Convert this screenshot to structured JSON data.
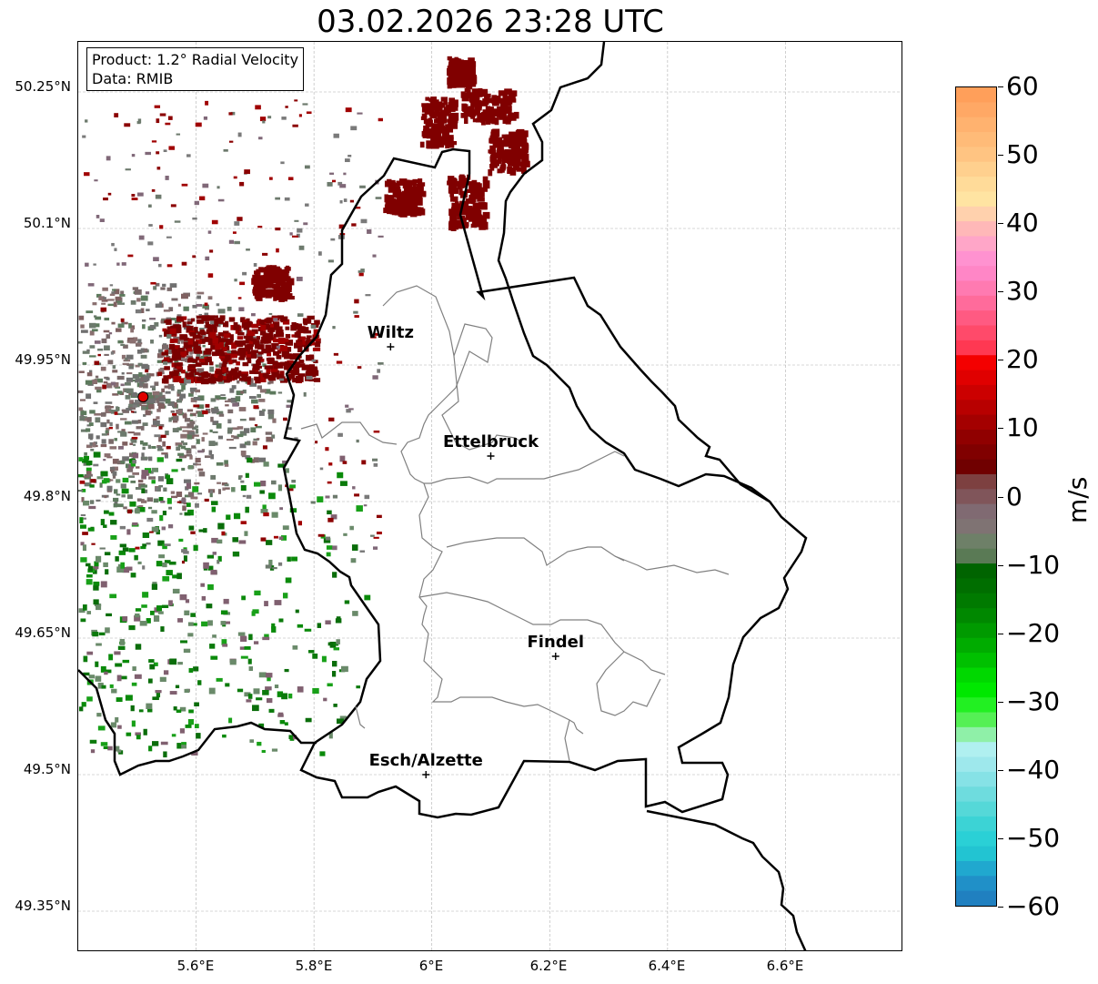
{
  "title": "03.02.2026 23:28 UTC",
  "info": {
    "product": "Product: 1.2° Radial Velocity",
    "data": "Data: RMIB"
  },
  "axes": {
    "lat_ticks": [
      "50.25°N",
      "50.1°N",
      "49.95°N",
      "49.8°N",
      "49.65°N",
      "49.5°N",
      "49.35°N"
    ],
    "lon_ticks": [
      "5.6°E",
      "5.8°E",
      "6°E",
      "6.2°E",
      "6.4°E",
      "6.6°E"
    ]
  },
  "cities": [
    {
      "name": "Wiltz",
      "lon": 5.93,
      "lat": 49.97
    },
    {
      "name": "Ettelbruck",
      "lon": 6.1,
      "lat": 49.85
    },
    {
      "name": "Findel",
      "lon": 6.21,
      "lat": 49.63
    },
    {
      "name": "Esch/Alzette",
      "lon": 5.99,
      "lat": 49.5
    }
  ],
  "radar_site": {
    "lon": 5.51,
    "lat": 49.915,
    "color": "#e00000"
  },
  "colorbar": {
    "unit": "m/s",
    "ticks": [
      "60",
      "50",
      "40",
      "30",
      "20",
      "10",
      "0",
      "−10",
      "−20",
      "−30",
      "−40",
      "−50",
      "−60"
    ],
    "min": -60,
    "max": 60
  },
  "colors": {
    "incoming_dark": "#8b0000",
    "outgoing_green": "#0a8a0a",
    "neutral_gray": "#7a7a7a",
    "border": "#000000",
    "canton_line": "#808080"
  }
}
